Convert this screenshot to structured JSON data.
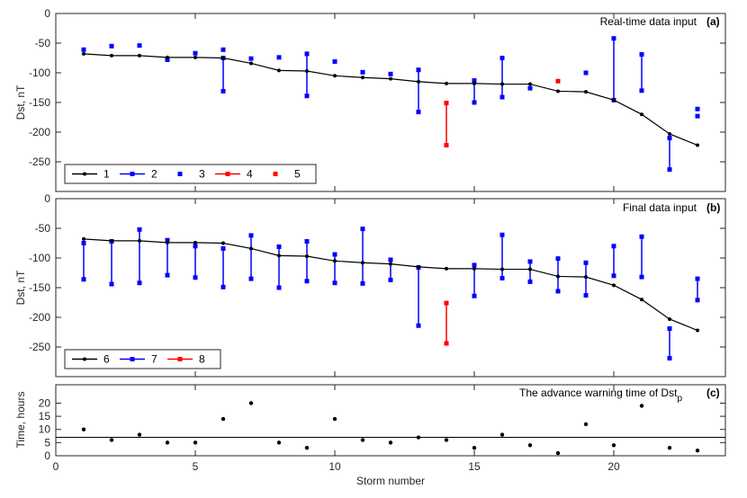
{
  "colors": {
    "black": "#000000",
    "blue": "#0000ff",
    "red": "#ff0000",
    "axis": "#262626"
  },
  "chart_data": [
    {
      "type": "line",
      "panel": "a",
      "title": "Real-time data input",
      "tag": "(a)",
      "xlabel": "",
      "ylabel": "Dst, nT",
      "xlim": [
        0,
        24
      ],
      "ylim": [
        -300,
        0
      ],
      "yticks": [
        0,
        -50,
        -100,
        -150,
        -200,
        -250
      ],
      "ytick_labels": [
        "0",
        "-50",
        "-100",
        "-150",
        "-200",
        "-250"
      ],
      "legend": {
        "position": "bottom-left",
        "entries": [
          {
            "label": "1",
            "color": "#000000",
            "style": "line-dot"
          },
          {
            "label": "2",
            "color": "#0000ff",
            "style": "line-square"
          },
          {
            "label": "3",
            "color": "#0000ff",
            "style": "square"
          },
          {
            "label": "4",
            "color": "#ff0000",
            "style": "line-square"
          },
          {
            "label": "5",
            "color": "#ff0000",
            "style": "square"
          }
        ]
      },
      "line": {
        "name": "1",
        "x": [
          1,
          2,
          3,
          4,
          5,
          6,
          7,
          8,
          9,
          10,
          11,
          12,
          13,
          14,
          15,
          16,
          17,
          18,
          19,
          20,
          21,
          22,
          23
        ],
        "y": [
          -68,
          -71,
          -71,
          -74,
          -74,
          -75,
          -84,
          -96,
          -97,
          -105,
          -108,
          -110,
          -115,
          -118,
          -118,
          -119,
          -119,
          -131,
          -132,
          -146,
          -170,
          -203,
          -222
        ]
      },
      "ranges": [
        {
          "x": 6,
          "y1": -75,
          "y2": -131,
          "color": "blue"
        },
        {
          "x": 9,
          "y1": -68,
          "y2": -139,
          "color": "blue"
        },
        {
          "x": 13,
          "y1": -95,
          "y2": -166,
          "color": "blue"
        },
        {
          "x": 14,
          "y1": -151,
          "y2": -222,
          "color": "red"
        },
        {
          "x": 15,
          "y1": -113,
          "y2": -150,
          "color": "blue"
        },
        {
          "x": 16,
          "y1": -75,
          "y2": -141,
          "color": "blue"
        },
        {
          "x": 20,
          "y1": -42,
          "y2": -146,
          "color": "blue"
        },
        {
          "x": 21,
          "y1": -69,
          "y2": -130,
          "color": "blue"
        },
        {
          "x": 22,
          "y1": -210,
          "y2": -263,
          "color": "blue"
        }
      ],
      "points": [
        {
          "x": 1,
          "y": -61,
          "color": "blue"
        },
        {
          "x": 2,
          "y": -55,
          "color": "blue"
        },
        {
          "x": 3,
          "y": -54,
          "color": "blue"
        },
        {
          "x": 4,
          "y": -78,
          "color": "blue"
        },
        {
          "x": 5,
          "y": -67,
          "color": "blue"
        },
        {
          "x": 6,
          "y": -61,
          "color": "blue"
        },
        {
          "x": 7,
          "y": -76,
          "color": "blue"
        },
        {
          "x": 8,
          "y": -74,
          "color": "blue"
        },
        {
          "x": 10,
          "y": -81,
          "color": "blue"
        },
        {
          "x": 11,
          "y": -99,
          "color": "blue"
        },
        {
          "x": 12,
          "y": -102,
          "color": "blue"
        },
        {
          "x": 17,
          "y": -126,
          "color": "blue"
        },
        {
          "x": 18,
          "y": -114,
          "color": "red"
        },
        {
          "x": 19,
          "y": -100,
          "color": "blue"
        },
        {
          "x": 23,
          "y": -161,
          "color": "blue"
        },
        {
          "x": 23,
          "y": -173,
          "color": "blue"
        }
      ]
    },
    {
      "type": "line",
      "panel": "b",
      "title": "Final data input",
      "tag": "(b)",
      "xlabel": "",
      "ylabel": "Dst, nT",
      "xlim": [
        0,
        24
      ],
      "ylim": [
        -300,
        0
      ],
      "yticks": [
        0,
        -50,
        -100,
        -150,
        -200,
        -250
      ],
      "ytick_labels": [
        "0",
        "-50",
        "-100",
        "-150",
        "-200",
        "-250"
      ],
      "legend": {
        "position": "bottom-left",
        "entries": [
          {
            "label": "6",
            "color": "#000000",
            "style": "line-dot"
          },
          {
            "label": "7",
            "color": "#0000ff",
            "style": "line-square"
          },
          {
            "label": "8",
            "color": "#ff0000",
            "style": "line-square"
          }
        ]
      },
      "line": {
        "name": "6",
        "x": [
          1,
          2,
          3,
          4,
          5,
          6,
          7,
          8,
          9,
          10,
          11,
          12,
          13,
          14,
          15,
          16,
          17,
          18,
          19,
          20,
          21,
          22,
          23
        ],
        "y": [
          -68,
          -71,
          -71,
          -74,
          -74,
          -75,
          -84,
          -96,
          -97,
          -105,
          -108,
          -110,
          -115,
          -118,
          -118,
          -119,
          -119,
          -131,
          -132,
          -146,
          -170,
          -203,
          -222
        ]
      },
      "ranges": [
        {
          "x": 1,
          "y1": -75,
          "y2": -136,
          "color": "blue"
        },
        {
          "x": 2,
          "y1": -72,
          "y2": -144,
          "color": "blue"
        },
        {
          "x": 3,
          "y1": -52,
          "y2": -142,
          "color": "blue"
        },
        {
          "x": 4,
          "y1": -70,
          "y2": -129,
          "color": "blue"
        },
        {
          "x": 5,
          "y1": -80,
          "y2": -133,
          "color": "blue"
        },
        {
          "x": 6,
          "y1": -84,
          "y2": -149,
          "color": "blue"
        },
        {
          "x": 7,
          "y1": -62,
          "y2": -135,
          "color": "blue"
        },
        {
          "x": 8,
          "y1": -81,
          "y2": -150,
          "color": "blue"
        },
        {
          "x": 9,
          "y1": -72,
          "y2": -139,
          "color": "blue"
        },
        {
          "x": 10,
          "y1": -94,
          "y2": -142,
          "color": "blue"
        },
        {
          "x": 11,
          "y1": -51,
          "y2": -143,
          "color": "blue"
        },
        {
          "x": 12,
          "y1": -103,
          "y2": -137,
          "color": "blue"
        },
        {
          "x": 13,
          "y1": -116,
          "y2": -214,
          "color": "blue"
        },
        {
          "x": 14,
          "y1": -176,
          "y2": -244,
          "color": "red"
        },
        {
          "x": 15,
          "y1": -112,
          "y2": -164,
          "color": "blue"
        },
        {
          "x": 16,
          "y1": -61,
          "y2": -134,
          "color": "blue"
        },
        {
          "x": 17,
          "y1": -106,
          "y2": -140,
          "color": "blue"
        },
        {
          "x": 18,
          "y1": -101,
          "y2": -156,
          "color": "blue"
        },
        {
          "x": 19,
          "y1": -108,
          "y2": -163,
          "color": "blue"
        },
        {
          "x": 20,
          "y1": -80,
          "y2": -130,
          "color": "blue"
        },
        {
          "x": 21,
          "y1": -64,
          "y2": -132,
          "color": "blue"
        },
        {
          "x": 22,
          "y1": -219,
          "y2": -269,
          "color": "blue"
        },
        {
          "x": 23,
          "y1": -135,
          "y2": -171,
          "color": "blue"
        }
      ],
      "points": []
    },
    {
      "type": "scatter",
      "panel": "c",
      "title": "The advance warning time of Dst",
      "title_subscript": "p",
      "tag": "(c)",
      "xlabel": "Storm number",
      "ylabel": "Time, hours",
      "xlim": [
        0,
        24
      ],
      "ylim": [
        0,
        27
      ],
      "yticks": [
        0,
        5,
        10,
        15,
        20
      ],
      "ytick_labels": [
        "0",
        "5",
        "10",
        "15",
        "20"
      ],
      "xticks": [
        0,
        5,
        10,
        15,
        20
      ],
      "xtick_labels": [
        "0",
        "5",
        "10",
        "15",
        "20"
      ],
      "reference_line": 7,
      "x": [
        1,
        2,
        3,
        4,
        5,
        6,
        7,
        8,
        9,
        10,
        11,
        12,
        13,
        14,
        15,
        16,
        17,
        18,
        19,
        20,
        21,
        22,
        23
      ],
      "y": [
        10,
        6,
        8,
        5,
        5,
        14,
        20,
        5,
        3,
        14,
        6,
        5,
        7,
        6,
        3,
        8,
        4,
        1,
        12,
        4,
        19,
        3,
        2
      ]
    }
  ]
}
